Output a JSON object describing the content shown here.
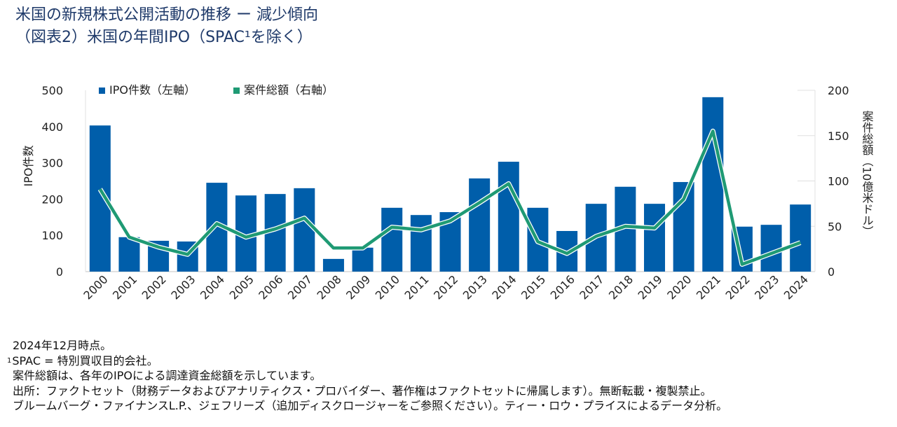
{
  "title": {
    "line1": "米国の新規株式公開活動の推移 ー 減少傾向",
    "line2": "（図表2）米国の年間IPO（SPAC¹を除く）"
  },
  "colors": {
    "bar": "#005EAA",
    "line": "#1F9A74",
    "title": "#1f3a6a"
  },
  "chart_data": {
    "type": "bar+line",
    "categories": [
      "2000",
      "2001",
      "2002",
      "2003",
      "2004",
      "2005",
      "2006",
      "2007",
      "2008",
      "2009",
      "2010",
      "2011",
      "2012",
      "2013",
      "2014",
      "2015",
      "2016",
      "2017",
      "2018",
      "2019",
      "2020",
      "2021",
      "2022",
      "2023",
      "2024"
    ],
    "series": [
      {
        "name": "IPO件数（左軸）",
        "type": "bar",
        "axis": "left",
        "values": [
          403,
          95,
          85,
          83,
          245,
          210,
          214,
          230,
          35,
          66,
          176,
          156,
          164,
          257,
          303,
          176,
          112,
          187,
          234,
          187,
          247,
          481,
          124,
          129,
          185
        ]
      },
      {
        "name": "案件総額（右軸）",
        "type": "line",
        "axis": "right",
        "values": [
          91,
          38,
          27,
          19,
          53,
          38,
          47,
          59,
          26,
          26,
          49,
          46,
          56,
          76,
          97,
          33,
          20,
          39,
          50,
          48,
          80,
          155,
          8,
          20,
          32
        ]
      }
    ],
    "ylabel": "IPO件数",
    "y2label": "案件総額（10億米ドル）",
    "ylim": [
      0,
      500
    ],
    "yticks": [
      "0",
      "100",
      "200",
      "300",
      "400",
      "500"
    ],
    "y2lim": [
      0,
      200
    ],
    "y2ticks": [
      "0",
      "50",
      "100",
      "150",
      "200"
    ],
    "legend": "top-left"
  },
  "notes": [
    "2024年12月時点。",
    "SPAC = 特別買収目的会社。",
    "案件総額は、各年のIPOによる調達資金総額を示しています。",
    "出所：ファクトセット（財務データおよびアナリティクス・プロバイダー、著作権はファクトセットに帰属します）。無断転載・複製禁止。",
    "ブルームバーグ・ファイナンスL.P.、ジェフリーズ（追加ディスクロージャーをご参照ください）。ティー・ロウ・プライスによるデータ分析。"
  ],
  "note_marker": "1"
}
